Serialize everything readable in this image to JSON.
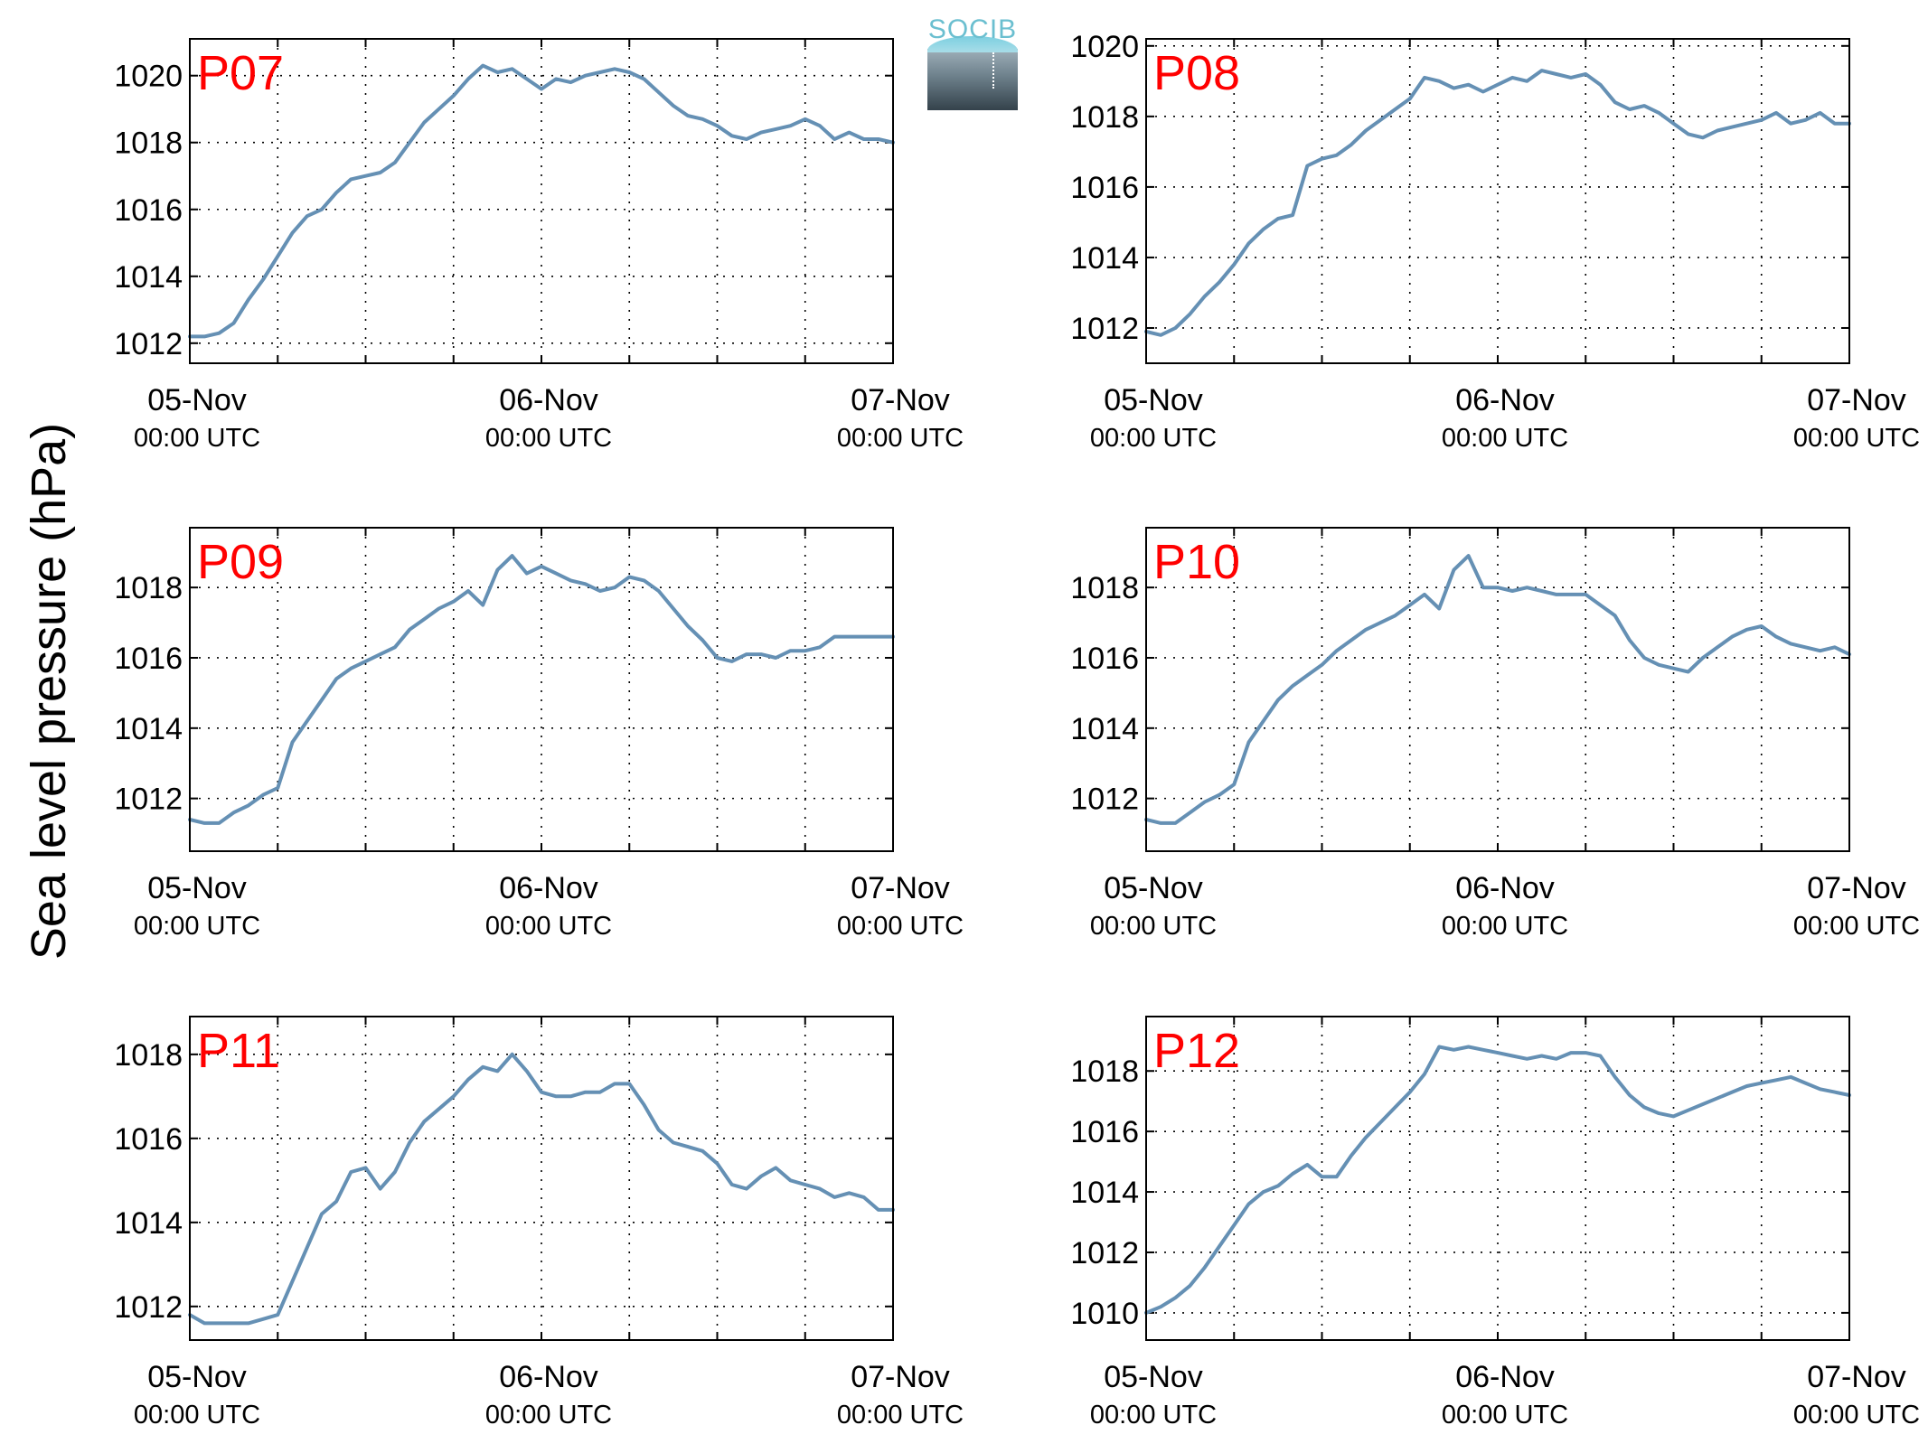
{
  "ylabel": "Sea level pressure (hPa)",
  "logo_text": "SOCIB",
  "colors": {
    "line": "#6590b4",
    "station_label": "#ff0000",
    "axis": "#000000"
  },
  "chart_data": [
    {
      "type": "line",
      "title": "P07",
      "xlabel": "",
      "ylabel": "Sea level pressure (hPa)",
      "xlim": [
        0,
        48
      ],
      "ylim": [
        1011.4,
        1021.1
      ],
      "yticks": [
        1012,
        1014,
        1016,
        1018,
        1020
      ],
      "xticks": [
        {
          "value": 0,
          "day": "05-Nov",
          "time": "00:00 UTC"
        },
        {
          "value": 24,
          "day": "06-Nov",
          "time": "00:00 UTC"
        },
        {
          "value": 48,
          "day": "07-Nov",
          "time": "00:00 UTC"
        }
      ],
      "grid": true,
      "series": [
        {
          "x": [
            0,
            1,
            2,
            3,
            4,
            5,
            6,
            7,
            8,
            9,
            10,
            11,
            12,
            13,
            14,
            15,
            16,
            17,
            18,
            19,
            20,
            21,
            22,
            23,
            24,
            25,
            26,
            27,
            28,
            29,
            30,
            31,
            32,
            33,
            34,
            35,
            36,
            37,
            38,
            39,
            40,
            41,
            42,
            43,
            44,
            45,
            46,
            47,
            48
          ],
          "values": [
            1012.2,
            1012.2,
            1012.3,
            1012.6,
            1013.3,
            1013.9,
            1014.6,
            1015.3,
            1015.8,
            1016.0,
            1016.5,
            1016.9,
            1017.0,
            1017.1,
            1017.4,
            1018.0,
            1018.6,
            1019.0,
            1019.4,
            1019.9,
            1020.3,
            1020.1,
            1020.2,
            1019.9,
            1019.6,
            1019.9,
            1019.8,
            1020.0,
            1020.1,
            1020.2,
            1020.1,
            1019.9,
            1019.5,
            1019.1,
            1018.8,
            1018.7,
            1018.5,
            1018.2,
            1018.1,
            1018.3,
            1018.4,
            1018.5,
            1018.7,
            1018.5,
            1018.1,
            1018.3,
            1018.1,
            1018.1,
            1018.0
          ]
        }
      ]
    },
    {
      "type": "line",
      "title": "P08",
      "xlabel": "",
      "ylabel": "Sea level pressure (hPa)",
      "xlim": [
        0,
        48
      ],
      "ylim": [
        1011.0,
        1020.2
      ],
      "yticks": [
        1012,
        1014,
        1016,
        1018,
        1020
      ],
      "xticks": [
        {
          "value": 0,
          "day": "05-Nov",
          "time": "00:00 UTC"
        },
        {
          "value": 24,
          "day": "06-Nov",
          "time": "00:00 UTC"
        },
        {
          "value": 48,
          "day": "07-Nov",
          "time": "00:00 UTC"
        }
      ],
      "grid": true,
      "series": [
        {
          "x": [
            0,
            1,
            2,
            3,
            4,
            5,
            6,
            7,
            8,
            9,
            10,
            11,
            12,
            13,
            14,
            15,
            16,
            17,
            18,
            19,
            20,
            21,
            22,
            23,
            24,
            25,
            26,
            27,
            28,
            29,
            30,
            31,
            32,
            33,
            34,
            35,
            36,
            37,
            38,
            39,
            40,
            41,
            42,
            43,
            44,
            45,
            46,
            47,
            48
          ],
          "values": [
            1011.9,
            1011.8,
            1012.0,
            1012.4,
            1012.9,
            1013.3,
            1013.8,
            1014.4,
            1014.8,
            1015.1,
            1015.2,
            1016.6,
            1016.8,
            1016.9,
            1017.2,
            1017.6,
            1017.9,
            1018.2,
            1018.5,
            1019.1,
            1019.0,
            1018.8,
            1018.9,
            1018.7,
            1018.9,
            1019.1,
            1019.0,
            1019.3,
            1019.2,
            1019.1,
            1019.2,
            1018.9,
            1018.4,
            1018.2,
            1018.3,
            1018.1,
            1017.8,
            1017.5,
            1017.4,
            1017.6,
            1017.7,
            1017.8,
            1017.9,
            1018.1,
            1017.8,
            1017.9,
            1018.1,
            1017.8,
            1017.8
          ]
        }
      ]
    },
    {
      "type": "line",
      "title": "P09",
      "xlabel": "",
      "ylabel": "Sea level pressure (hPa)",
      "xlim": [
        0,
        48
      ],
      "ylim": [
        1010.5,
        1019.7
      ],
      "yticks": [
        1012,
        1014,
        1016,
        1018
      ],
      "xticks": [
        {
          "value": 0,
          "day": "05-Nov",
          "time": "00:00 UTC"
        },
        {
          "value": 24,
          "day": "06-Nov",
          "time": "00:00 UTC"
        },
        {
          "value": 48,
          "day": "07-Nov",
          "time": "00:00 UTC"
        }
      ],
      "grid": true,
      "series": [
        {
          "x": [
            0,
            1,
            2,
            3,
            4,
            5,
            6,
            7,
            8,
            9,
            10,
            11,
            12,
            13,
            14,
            15,
            16,
            17,
            18,
            19,
            20,
            21,
            22,
            23,
            24,
            25,
            26,
            27,
            28,
            29,
            30,
            31,
            32,
            33,
            34,
            35,
            36,
            37,
            38,
            39,
            40,
            41,
            42,
            43,
            44,
            45,
            46,
            47,
            48
          ],
          "values": [
            1011.4,
            1011.3,
            1011.3,
            1011.6,
            1011.8,
            1012.1,
            1012.3,
            1013.6,
            1014.2,
            1014.8,
            1015.4,
            1015.7,
            1015.9,
            1016.1,
            1016.3,
            1016.8,
            1017.1,
            1017.4,
            1017.6,
            1017.9,
            1017.5,
            1018.5,
            1018.9,
            1018.4,
            1018.6,
            1018.4,
            1018.2,
            1018.1,
            1017.9,
            1018.0,
            1018.3,
            1018.2,
            1017.9,
            1017.4,
            1016.9,
            1016.5,
            1016.0,
            1015.9,
            1016.1,
            1016.1,
            1016.0,
            1016.2,
            1016.2,
            1016.3,
            1016.6,
            1016.6,
            1016.6,
            1016.6,
            1016.6
          ]
        }
      ]
    },
    {
      "type": "line",
      "title": "P10",
      "xlabel": "",
      "ylabel": "Sea level pressure (hPa)",
      "xlim": [
        0,
        48
      ],
      "ylim": [
        1010.5,
        1019.7
      ],
      "yticks": [
        1012,
        1014,
        1016,
        1018
      ],
      "xticks": [
        {
          "value": 0,
          "day": "05-Nov",
          "time": "00:00 UTC"
        },
        {
          "value": 24,
          "day": "06-Nov",
          "time": "00:00 UTC"
        },
        {
          "value": 48,
          "day": "07-Nov",
          "time": "00:00 UTC"
        }
      ],
      "grid": true,
      "series": [
        {
          "x": [
            0,
            1,
            2,
            3,
            4,
            5,
            6,
            7,
            8,
            9,
            10,
            11,
            12,
            13,
            14,
            15,
            16,
            17,
            18,
            19,
            20,
            21,
            22,
            23,
            24,
            25,
            26,
            27,
            28,
            29,
            30,
            31,
            32,
            33,
            34,
            35,
            36,
            37,
            38,
            39,
            40,
            41,
            42,
            43,
            44,
            45,
            46,
            47,
            48
          ],
          "values": [
            1011.4,
            1011.3,
            1011.3,
            1011.6,
            1011.9,
            1012.1,
            1012.4,
            1013.6,
            1014.2,
            1014.8,
            1015.2,
            1015.5,
            1015.8,
            1016.2,
            1016.5,
            1016.8,
            1017.0,
            1017.2,
            1017.5,
            1017.8,
            1017.4,
            1018.5,
            1018.9,
            1018.0,
            1018.0,
            1017.9,
            1018.0,
            1017.9,
            1017.8,
            1017.8,
            1017.8,
            1017.5,
            1017.2,
            1016.5,
            1016.0,
            1015.8,
            1015.7,
            1015.6,
            1016.0,
            1016.3,
            1016.6,
            1016.8,
            1016.9,
            1016.6,
            1016.4,
            1016.3,
            1016.2,
            1016.3,
            1016.1
          ]
        }
      ]
    },
    {
      "type": "line",
      "title": "P11",
      "xlabel": "",
      "ylabel": "Sea level pressure (hPa)",
      "xlim": [
        0,
        48
      ],
      "ylim": [
        1011.2,
        1018.9
      ],
      "yticks": [
        1012,
        1014,
        1016,
        1018
      ],
      "xticks": [
        {
          "value": 0,
          "day": "05-Nov",
          "time": "00:00 UTC"
        },
        {
          "value": 24,
          "day": "06-Nov",
          "time": "00:00 UTC"
        },
        {
          "value": 48,
          "day": "07-Nov",
          "time": "00:00 UTC"
        }
      ],
      "grid": true,
      "series": [
        {
          "x": [
            0,
            1,
            2,
            3,
            4,
            5,
            6,
            7,
            8,
            9,
            10,
            11,
            12,
            13,
            14,
            15,
            16,
            17,
            18,
            19,
            20,
            21,
            22,
            23,
            24,
            25,
            26,
            27,
            28,
            29,
            30,
            31,
            32,
            33,
            34,
            35,
            36,
            37,
            38,
            39,
            40,
            41,
            42,
            43,
            44,
            45,
            46,
            47,
            48
          ],
          "values": [
            1011.8,
            1011.6,
            1011.6,
            1011.6,
            1011.6,
            1011.7,
            1011.8,
            1012.6,
            1013.4,
            1014.2,
            1014.5,
            1015.2,
            1015.3,
            1014.8,
            1015.2,
            1015.9,
            1016.4,
            1016.7,
            1017.0,
            1017.4,
            1017.7,
            1017.6,
            1018.0,
            1017.6,
            1017.1,
            1017.0,
            1017.0,
            1017.1,
            1017.1,
            1017.3,
            1017.3,
            1016.8,
            1016.2,
            1015.9,
            1015.8,
            1015.7,
            1015.4,
            1014.9,
            1014.8,
            1015.1,
            1015.3,
            1015.0,
            1014.9,
            1014.8,
            1014.6,
            1014.7,
            1014.6,
            1014.3,
            1014.3
          ]
        }
      ]
    },
    {
      "type": "line",
      "title": "P12",
      "xlabel": "",
      "ylabel": "Sea level pressure (hPa)",
      "xlim": [
        0,
        48
      ],
      "ylim": [
        1009.1,
        1019.8
      ],
      "yticks": [
        1010,
        1012,
        1014,
        1016,
        1018
      ],
      "xticks": [
        {
          "value": 0,
          "day": "05-Nov",
          "time": "00:00 UTC"
        },
        {
          "value": 24,
          "day": "06-Nov",
          "time": "00:00 UTC"
        },
        {
          "value": 48,
          "day": "07-Nov",
          "time": "00:00 UTC"
        }
      ],
      "grid": true,
      "series": [
        {
          "x": [
            0,
            1,
            2,
            3,
            4,
            5,
            6,
            7,
            8,
            9,
            10,
            11,
            12,
            13,
            14,
            15,
            16,
            17,
            18,
            19,
            20,
            21,
            22,
            23,
            24,
            25,
            26,
            27,
            28,
            29,
            30,
            31,
            32,
            33,
            34,
            35,
            36,
            37,
            38,
            39,
            40,
            41,
            42,
            43,
            44,
            45,
            46,
            47,
            48
          ],
          "values": [
            1010.0,
            1010.2,
            1010.5,
            1010.9,
            1011.5,
            1012.2,
            1012.9,
            1013.6,
            1014.0,
            1014.2,
            1014.6,
            1014.9,
            1014.5,
            1014.5,
            1015.2,
            1015.8,
            1016.3,
            1016.8,
            1017.3,
            1017.9,
            1018.8,
            1018.7,
            1018.8,
            1018.7,
            1018.6,
            1018.5,
            1018.4,
            1018.5,
            1018.4,
            1018.6,
            1018.6,
            1018.5,
            1017.8,
            1017.2,
            1016.8,
            1016.6,
            1016.5,
            1016.7,
            1016.9,
            1017.1,
            1017.3,
            1017.5,
            1017.6,
            1017.7,
            1017.8,
            1017.6,
            1017.4,
            1017.3,
            1017.2
          ]
        }
      ]
    }
  ]
}
